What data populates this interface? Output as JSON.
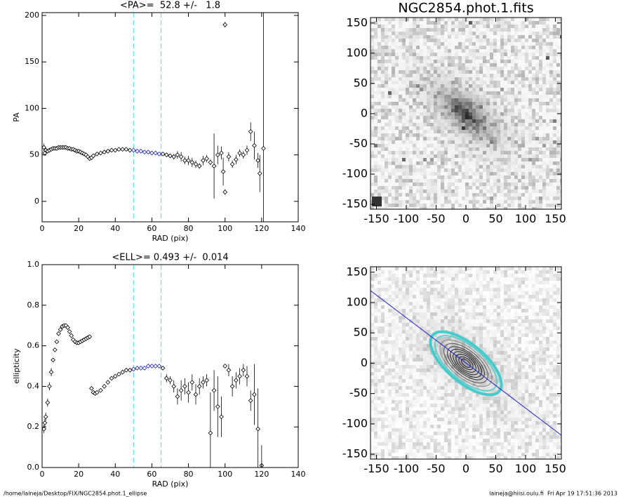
{
  "chart_data": [
    {
      "type": "errorbar",
      "title": "<PA>=  52.8 +/-   1.8",
      "xlabel": "RAD (pix)",
      "ylabel": "PA",
      "xlim": [
        0,
        140
      ],
      "xticks": [
        0,
        20,
        40,
        60,
        80,
        100,
        120,
        140
      ],
      "ylim": [
        -22,
        203
      ],
      "yticks": [
        0,
        50,
        100,
        150,
        200
      ],
      "vlines": [
        50,
        65
      ],
      "vline_color": "#66e0e0",
      "series": [
        {
          "color": "#000000",
          "x": [
            1,
            1.5,
            2,
            3,
            4,
            5,
            6,
            7,
            8,
            9,
            10,
            11,
            12,
            13,
            14,
            15,
            16,
            17,
            18,
            19,
            20,
            21,
            22,
            23,
            24,
            25,
            26,
            27,
            28,
            30,
            32,
            34,
            36,
            38,
            40,
            42,
            44,
            46,
            48
          ],
          "values": [
            58,
            52,
            55,
            54,
            55,
            56,
            57,
            57,
            57,
            58,
            58,
            58,
            58,
            58,
            57,
            57,
            56,
            56,
            55,
            54,
            54,
            53,
            52,
            51,
            50,
            48,
            46,
            47,
            49,
            51,
            52,
            53,
            54,
            55,
            55,
            56,
            56,
            56,
            55
          ],
          "errors": [
            4,
            3,
            2,
            1,
            1,
            1,
            1,
            1,
            1,
            1,
            1,
            1,
            1,
            1,
            1,
            1,
            1,
            1,
            1,
            1,
            1,
            1,
            1,
            1,
            1,
            1,
            1,
            1,
            1,
            1,
            1,
            1,
            1,
            1,
            1,
            1,
            1,
            1,
            1
          ]
        },
        {
          "color": "#2020c0",
          "x": [
            50,
            52,
            54,
            56,
            58,
            60,
            62,
            64
          ],
          "values": [
            55,
            54,
            54,
            53,
            53,
            52,
            52,
            51
          ],
          "errors": [
            1,
            1,
            1,
            1,
            1,
            1,
            1,
            1
          ]
        },
        {
          "color": "#000000",
          "x": [
            66,
            68,
            70,
            72,
            74,
            76,
            78,
            80,
            82,
            84,
            86,
            88,
            90,
            92,
            94,
            96,
            98,
            99,
            100,
            100,
            102,
            104,
            106,
            108,
            110,
            112,
            114,
            116,
            118,
            119,
            121
          ],
          "values": [
            51,
            50,
            49,
            48,
            50,
            48,
            44,
            44,
            42,
            40,
            38,
            44,
            46,
            42,
            38,
            50,
            52,
            32,
            10,
            190,
            48,
            40,
            45,
            52,
            50,
            55,
            75,
            60,
            44,
            30,
            57
          ],
          "errors": [
            1,
            2,
            2,
            3,
            4,
            5,
            4,
            5,
            5,
            4,
            3,
            5,
            4,
            3,
            35,
            10,
            7,
            15,
            3,
            3,
            5,
            4,
            5,
            4,
            4,
            5,
            10,
            15,
            8,
            20,
            200
          ]
        }
      ]
    },
    {
      "type": "errorbar",
      "title": "<ELL>= 0.493 +/-  0.014",
      "xlabel": "RAD (pix)",
      "ylabel": "ellipticity",
      "xlim": [
        0,
        140
      ],
      "xticks": [
        0,
        20,
        40,
        60,
        80,
        100,
        120,
        140
      ],
      "ylim": [
        0,
        1
      ],
      "yticks": [
        {
          "value": 0,
          "label": "0.0"
        },
        0.2,
        0.4,
        0.6,
        0.8,
        {
          "value": 1,
          "label": "1.0"
        }
      ],
      "vlines": [
        50,
        65
      ],
      "vline_color": "#66e0e0",
      "series": [
        {
          "color": "#000000",
          "x": [
            1,
            1.5,
            2,
            3,
            4,
            5,
            6,
            7,
            8,
            9,
            10,
            11,
            12,
            13,
            14,
            15,
            16,
            17,
            18,
            19,
            20,
            21,
            22,
            23,
            24,
            25,
            26,
            27,
            28,
            29,
            30,
            32,
            34,
            36,
            38,
            40,
            42,
            44,
            46,
            48
          ],
          "values": [
            0.19,
            0.22,
            0.25,
            0.32,
            0.4,
            0.47,
            0.53,
            0.58,
            0.62,
            0.66,
            0.68,
            0.695,
            0.7,
            0.7,
            0.69,
            0.67,
            0.65,
            0.63,
            0.62,
            0.615,
            0.615,
            0.62,
            0.625,
            0.63,
            0.635,
            0.64,
            0.645,
            0.39,
            0.37,
            0.365,
            0.37,
            0.38,
            0.4,
            0.42,
            0.44,
            0.45,
            0.46,
            0.47,
            0.48,
            0.48
          ],
          "errors": [
            0.02,
            0.02,
            0.02,
            0.02,
            0.02,
            0.02,
            0.01,
            0.01,
            0.01,
            0.01,
            0.01,
            0.01,
            0.01,
            0.01,
            0.01,
            0.01,
            0.01,
            0.01,
            0.01,
            0.01,
            0.01,
            0.01,
            0.01,
            0.01,
            0.01,
            0.01,
            0.01,
            0.01,
            0.01,
            0.01,
            0.01,
            0.01,
            0.01,
            0.01,
            0.01,
            0.01,
            0.01,
            0.01,
            0.01,
            0.01
          ]
        },
        {
          "color": "#2020c0",
          "x": [
            50,
            52,
            54,
            56,
            58,
            60,
            62,
            64
          ],
          "values": [
            0.485,
            0.49,
            0.49,
            0.49,
            0.5,
            0.5,
            0.5,
            0.5
          ],
          "errors": [
            0.01,
            0.01,
            0.01,
            0.01,
            0.01,
            0.01,
            0.01,
            0.01
          ]
        },
        {
          "color": "#000000",
          "x": [
            66,
            68,
            70,
            72,
            74,
            76,
            78,
            80,
            82,
            84,
            86,
            88,
            90,
            92,
            94,
            96,
            98,
            100,
            102,
            104,
            106,
            108,
            110,
            112,
            114,
            116,
            118,
            120
          ],
          "values": [
            0.49,
            0.44,
            0.43,
            0.4,
            0.35,
            0.38,
            0.4,
            0.37,
            0.42,
            0.36,
            0.4,
            0.42,
            0.43,
            0.17,
            0.38,
            0.3,
            0.25,
            0.5,
            0.48,
            0.4,
            0.43,
            0.45,
            0.48,
            0.45,
            0.33,
            0.36,
            0.19,
            0.01
          ],
          "errors": [
            0.01,
            0.02,
            0.02,
            0.03,
            0.04,
            0.05,
            0.04,
            0.05,
            0.04,
            0.05,
            0.04,
            0.03,
            0.03,
            0.2,
            0.1,
            0.15,
            0.1,
            0.01,
            0.03,
            0.05,
            0.04,
            0.04,
            0.03,
            0.05,
            0.05,
            0.15,
            0.2,
            0.1
          ]
        }
      ]
    },
    {
      "type": "image",
      "title": "NGC2854.phot.1.fits",
      "xlim": [
        -160,
        160
      ],
      "ylim": [
        -158,
        159
      ],
      "xticks": [
        -150,
        -100,
        -50,
        0,
        50,
        100,
        150
      ],
      "yticks": [
        -150,
        -100,
        -50,
        0,
        50,
        100,
        150
      ]
    },
    {
      "type": "image",
      "contours": true,
      "xlim": [
        -160,
        160
      ],
      "ylim": [
        -158,
        159
      ],
      "xticks": [
        -150,
        -100,
        -50,
        0,
        50,
        100,
        150
      ],
      "yticks": [
        -150,
        -100,
        -50,
        0,
        50,
        100,
        150
      ]
    }
  ],
  "footer": {
    "left": "/home/laineja/Desktop/FIX/NGC2854.phot.1_ellipse",
    "right": "laineja@hiisi.oulu.fi  Fri Apr 19 17:51:36 2013"
  }
}
